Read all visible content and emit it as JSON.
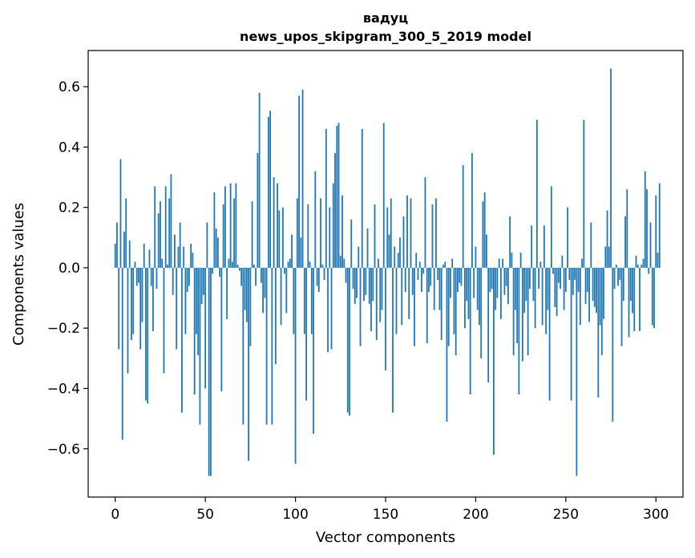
{
  "chart_data": {
    "type": "bar",
    "title_line1": "вадуц",
    "title_line2": "news_upos_skipgram_300_5_2019 model",
    "xlabel": "Vector components",
    "ylabel": "Components values",
    "xlim": [
      -15,
      315
    ],
    "ylim": [
      -0.76,
      0.72
    ],
    "xticks": [
      0,
      50,
      100,
      150,
      200,
      250,
      300
    ],
    "xtick_labels": [
      "0",
      "50",
      "100",
      "150",
      "200",
      "250",
      "300"
    ],
    "yticks": [
      -0.6,
      -0.4,
      -0.2,
      0.0,
      0.2,
      0.4,
      0.6
    ],
    "ytick_labels": [
      "−0.6",
      "−0.4",
      "−0.2",
      "0.0",
      "0.2",
      "0.4",
      "0.6"
    ],
    "bar_color": "#1f77b4",
    "values": [
      0.08,
      0.15,
      -0.27,
      0.36,
      -0.57,
      0.12,
      0.23,
      -0.35,
      0.09,
      -0.24,
      -0.22,
      0.02,
      -0.06,
      -0.05,
      -0.27,
      -0.18,
      0.08,
      -0.44,
      -0.45,
      0.06,
      -0.06,
      -0.21,
      0.27,
      -0.07,
      0.18,
      0.22,
      0.03,
      -0.35,
      0.27,
      0.01,
      0.23,
      0.31,
      -0.09,
      0.11,
      -0.27,
      0.07,
      0.15,
      -0.48,
      0.07,
      -0.22,
      -0.08,
      -0.06,
      0.08,
      0.05,
      -0.42,
      -0.22,
      -0.29,
      -0.52,
      -0.12,
      -0.09,
      -0.4,
      0.15,
      -0.69,
      -0.69,
      -0.02,
      0.25,
      0.13,
      0.1,
      -0.03,
      -0.41,
      0.21,
      0.27,
      -0.17,
      0.03,
      0.28,
      0.02,
      0.23,
      0.28,
      0.01,
      -0.01,
      -0.06,
      -0.52,
      -0.14,
      -0.18,
      -0.64,
      -0.26,
      0.22,
      0.01,
      -0.06,
      0.38,
      0.58,
      -0.05,
      -0.15,
      -0.1,
      -0.52,
      0.5,
      0.52,
      -0.52,
      0.3,
      -0.32,
      0.28,
      0.19,
      -0.19,
      0.2,
      -0.02,
      -0.15,
      0.02,
      0.03,
      0.11,
      -0.22,
      -0.65,
      0.23,
      0.57,
      0.1,
      0.59,
      -0.22,
      -0.44,
      0.21,
      0.02,
      -0.22,
      -0.55,
      0.32,
      -0.06,
      -0.08,
      0.23,
      0.01,
      -0.04,
      0.46,
      -0.28,
      0.2,
      -0.27,
      0.28,
      0.38,
      0.47,
      0.48,
      0.04,
      0.24,
      0.03,
      -0.05,
      -0.48,
      -0.49,
      0.16,
      -0.07,
      -0.12,
      -0.1,
      0.07,
      -0.26,
      0.46,
      -0.11,
      -0.09,
      0.13,
      -0.12,
      -0.21,
      -0.11,
      0.21,
      -0.24,
      0.03,
      -0.18,
      -0.14,
      0.48,
      -0.34,
      0.2,
      0.11,
      0.23,
      -0.48,
      0.07,
      -0.22,
      0.05,
      0.1,
      -0.19,
      0.17,
      -0.08,
      0.24,
      -0.17,
      0.23,
      -0.09,
      -0.26,
      0.05,
      -0.04,
      0.02,
      -0.08,
      -0.02,
      0.3,
      -0.25,
      -0.08,
      -0.06,
      0.21,
      -0.14,
      0.23,
      -0.04,
      -0.14,
      -0.24,
      0.01,
      0.02,
      -0.51,
      -0.26,
      -0.1,
      0.03,
      -0.22,
      -0.29,
      -0.08,
      -0.05,
      -0.06,
      0.34,
      -0.2,
      -0.11,
      -0.17,
      -0.42,
      0.38,
      -0.1,
      0.07,
      -0.14,
      -0.19,
      -0.3,
      0.22,
      0.25,
      0.11,
      -0.38,
      -0.08,
      -0.07,
      -0.62,
      -0.14,
      -0.1,
      0.03,
      -0.17,
      0.03,
      -0.09,
      -0.06,
      -0.12,
      0.17,
      0.05,
      -0.29,
      -0.14,
      -0.25,
      -0.42,
      0.05,
      -0.31,
      -0.15,
      -0.11,
      -0.29,
      -0.07,
      0.14,
      -0.11,
      -0.2,
      0.49,
      -0.07,
      0.02,
      -0.19,
      0.14,
      -0.22,
      -0.14,
      -0.44,
      0.27,
      -0.02,
      -0.13,
      -0.16,
      -0.05,
      -0.07,
      0.04,
      -0.14,
      -0.08,
      0.2,
      -0.04,
      -0.44,
      -0.09,
      -0.04,
      -0.69,
      -0.08,
      -0.19,
      0.03,
      0.49,
      -0.12,
      -0.08,
      -0.18,
      0.15,
      -0.11,
      -0.13,
      -0.15,
      -0.43,
      -0.19,
      -0.29,
      -0.17,
      0.07,
      0.19,
      0.07,
      0.66,
      -0.51,
      -0.07,
      0.01,
      -0.06,
      -0.04,
      -0.26,
      -0.11,
      0.17,
      0.26,
      -0.23,
      -0.11,
      -0.15,
      -0.21,
      0.04,
      0.01,
      -0.21,
      0.01,
      0.03,
      0.32,
      0.26,
      -0.02,
      0.15,
      -0.19,
      -0.2,
      0.24,
      0.05,
      0.28
    ]
  }
}
